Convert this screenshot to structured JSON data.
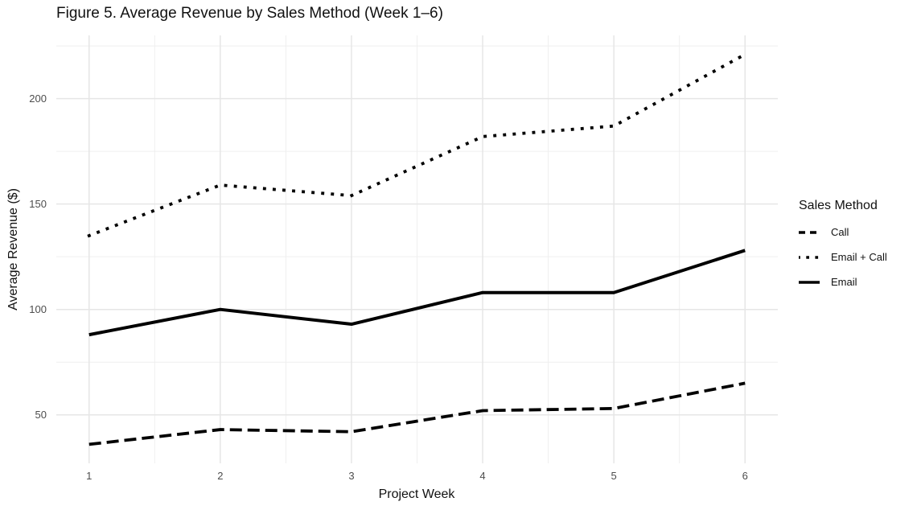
{
  "colors": {
    "background": "#ffffff",
    "line": "#000000",
    "grid_major": "#e6e6e6",
    "grid_minor": "#efefef",
    "tick_label": "#4d4d4d",
    "text": "#111111"
  },
  "chart_data": {
    "type": "line",
    "title": "Figure 5. Average Revenue by Sales Method (Week 1–6)",
    "xlabel": "Project Week",
    "ylabel": "Average Revenue ($)",
    "x": [
      1,
      2,
      3,
      4,
      5,
      6
    ],
    "xticks": [
      "1",
      "2",
      "3",
      "4",
      "5",
      "6"
    ],
    "yticks": [
      50,
      100,
      150,
      200
    ],
    "yticks_minor": [
      75,
      125,
      175,
      225
    ],
    "xlim": [
      0.75,
      6.25
    ],
    "ylim": [
      27,
      230
    ],
    "grid": true,
    "legend_title": "Sales Method",
    "legend_position": "right",
    "series": [
      {
        "name": "Call",
        "linestyle": "dashed",
        "color": "#000000",
        "values": [
          36,
          43,
          42,
          52,
          53,
          65
        ]
      },
      {
        "name": "Email + Call",
        "linestyle": "dotted",
        "color": "#000000",
        "values": [
          135,
          159,
          154,
          182,
          187,
          221
        ]
      },
      {
        "name": "Email",
        "linestyle": "solid",
        "color": "#000000",
        "values": [
          88,
          100,
          93,
          108,
          108,
          128
        ]
      }
    ]
  }
}
